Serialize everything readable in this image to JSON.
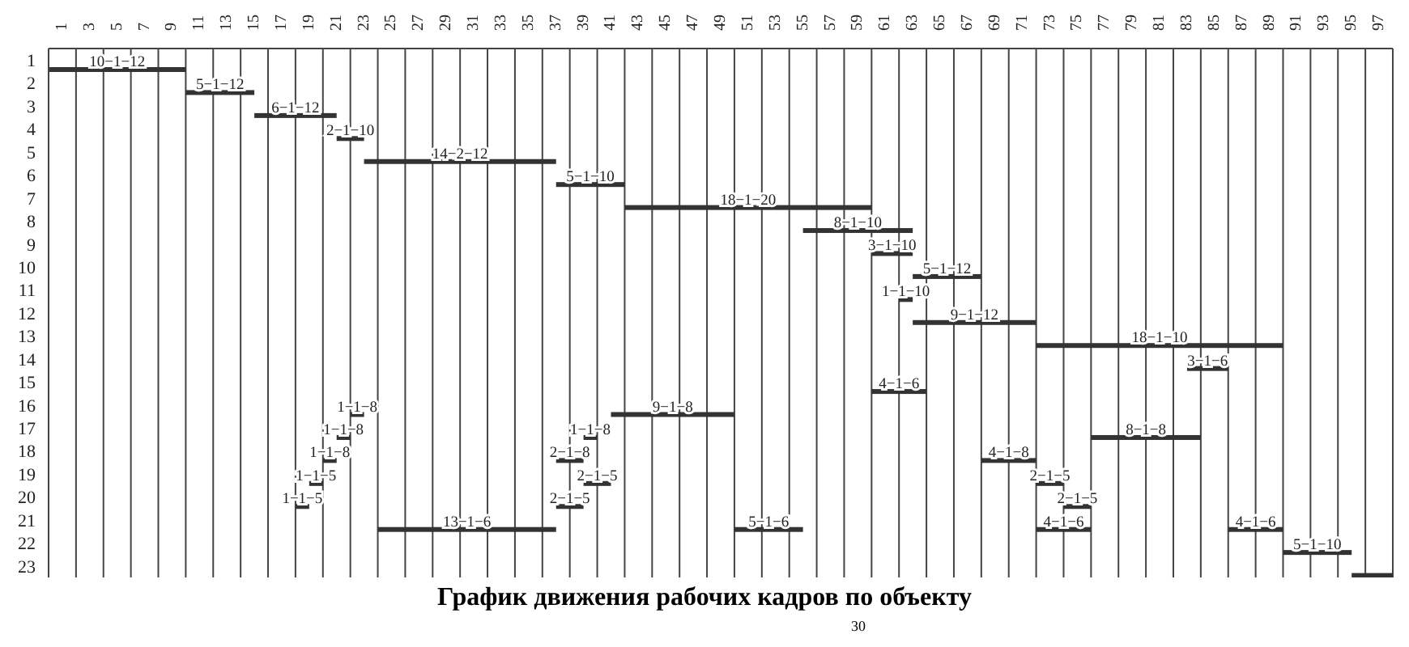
{
  "chart_data": {
    "type": "bar",
    "orientation": "horizontal",
    "title": "График движения рабочих кадров по объекту",
    "categories": [
      "1",
      "2",
      "3",
      "4",
      "5",
      "6",
      "7",
      "8",
      "9",
      "10",
      "11",
      "12",
      "13",
      "14",
      "15",
      "16",
      "17",
      "18",
      "19",
      "20",
      "21",
      "22",
      "23"
    ],
    "series": [
      {
        "color": "#333333",
        "base": [
          0,
          10,
          15,
          21,
          23,
          37,
          42,
          55,
          60,
          63,
          62,
          63,
          72,
          83,
          60,
          22,
          21,
          20,
          19,
          18,
          24,
          90,
          95
        ],
        "values": [
          10,
          5,
          6,
          2,
          14,
          5,
          18,
          8,
          3,
          5,
          1,
          9,
          18,
          3,
          4,
          1,
          1,
          1,
          1,
          1,
          13,
          5,
          3
        ],
        "value_labels": [
          "10−1−12",
          "5−1−12",
          "6−1−12",
          "2−1−10",
          "14−2−12",
          "5−1−10",
          "18−1−20",
          "8−1−10",
          "3−1−10",
          "5−1−12",
          "1−1−10",
          "9−1−12",
          "18−1−10",
          "3−1−6",
          "4−1−6",
          "1−1−8",
          "1−1−8",
          "1−1−8",
          "1−1−5",
          "1−1−5",
          "13−1−6",
          "5−1−10",
          null
        ]
      },
      {
        "color": "#333333",
        "base": [
          null,
          null,
          null,
          null,
          null,
          null,
          null,
          null,
          null,
          null,
          null,
          null,
          null,
          null,
          null,
          41,
          39,
          37,
          39,
          37,
          50,
          null,
          null
        ],
        "values": [
          null,
          null,
          null,
          null,
          null,
          null,
          null,
          null,
          null,
          null,
          null,
          null,
          null,
          null,
          null,
          9,
          1,
          2,
          2,
          2,
          5,
          null,
          null
        ],
        "value_labels": [
          null,
          null,
          null,
          null,
          null,
          null,
          null,
          null,
          null,
          null,
          null,
          null,
          null,
          null,
          null,
          "9−1−8",
          "1−1−8",
          "2−1−8",
          "2−1−5",
          "2−1−5",
          "5−1−6",
          null,
          null
        ]
      },
      {
        "color": "#333333",
        "base": [
          null,
          null,
          null,
          null,
          null,
          null,
          null,
          null,
          null,
          null,
          null,
          null,
          null,
          null,
          null,
          null,
          76,
          68,
          72,
          74,
          72,
          null,
          null
        ],
        "values": [
          null,
          null,
          null,
          null,
          null,
          null,
          null,
          null,
          null,
          null,
          null,
          null,
          null,
          null,
          null,
          null,
          8,
          4,
          2,
          2,
          4,
          null,
          null
        ],
        "value_labels": [
          null,
          null,
          null,
          null,
          null,
          null,
          null,
          null,
          null,
          null,
          null,
          null,
          null,
          null,
          null,
          null,
          "8−1−8",
          "4−1−8",
          "2−1−5",
          "2−1−5",
          "4−1−6",
          null,
          null
        ]
      },
      {
        "color": "#333333",
        "base": [
          null,
          null,
          null,
          null,
          null,
          null,
          null,
          null,
          null,
          null,
          null,
          null,
          null,
          null,
          null,
          null,
          null,
          null,
          null,
          null,
          86,
          null,
          null
        ],
        "values": [
          null,
          null,
          null,
          null,
          null,
          null,
          null,
          null,
          null,
          null,
          null,
          null,
          null,
          null,
          null,
          null,
          null,
          null,
          null,
          null,
          4,
          null,
          null
        ],
        "value_labels": [
          null,
          null,
          null,
          null,
          null,
          null,
          null,
          null,
          null,
          null,
          null,
          null,
          null,
          null,
          null,
          null,
          null,
          null,
          null,
          null,
          "4−1−6",
          null,
          null
        ]
      }
    ],
    "xlim": [
      0,
      98
    ],
    "xticks": [
      {
        "value": 0,
        "label": null
      },
      1,
      {
        "value": 2,
        "label": null
      },
      3,
      {
        "value": 4,
        "label": null
      },
      5,
      {
        "value": 6,
        "label": null
      },
      7,
      {
        "value": 8,
        "label": null
      },
      9,
      {
        "value": 10,
        "label": null
      },
      11,
      {
        "value": 12,
        "label": null
      },
      13,
      {
        "value": 14,
        "label": null
      },
      15,
      {
        "value": 16,
        "label": null
      },
      17,
      {
        "value": 18,
        "label": null
      },
      19,
      {
        "value": 20,
        "label": null
      },
      21,
      {
        "value": 22,
        "label": null
      },
      23,
      {
        "value": 24,
        "label": null
      },
      25,
      {
        "value": 26,
        "label": null
      },
      27,
      {
        "value": 28,
        "label": null
      },
      29,
      {
        "value": 30,
        "label": null
      },
      31,
      {
        "value": 32,
        "label": null
      },
      33,
      {
        "value": 34,
        "label": null
      },
      35,
      {
        "value": 36,
        "label": null
      },
      37,
      {
        "value": 38,
        "label": null
      },
      39,
      {
        "value": 40,
        "label": null
      },
      41,
      {
        "value": 42,
        "label": null
      },
      43,
      {
        "value": 44,
        "label": null
      },
      45,
      {
        "value": 46,
        "label": null
      },
      47,
      {
        "value": 48,
        "label": null
      },
      49,
      {
        "value": 50,
        "label": null
      },
      51,
      {
        "value": 52,
        "label": null
      },
      53,
      {
        "value": 54,
        "label": null
      },
      55,
      {
        "value": 56,
        "label": null
      },
      57,
      {
        "value": 58,
        "label": null
      },
      59,
      {
        "value": 60,
        "label": null
      },
      61,
      {
        "value": 62,
        "label": null
      },
      63,
      {
        "value": 64,
        "label": null
      },
      65,
      {
        "value": 66,
        "label": null
      },
      67,
      {
        "value": 68,
        "label": null
      },
      69,
      {
        "value": 70,
        "label": null
      },
      71,
      {
        "value": 72,
        "label": null
      },
      73,
      {
        "value": 74,
        "label": null
      },
      75,
      {
        "value": 76,
        "label": null
      },
      77,
      {
        "value": 78,
        "label": null
      },
      79,
      {
        "value": 80,
        "label": null
      },
      81,
      {
        "value": 82,
        "label": null
      },
      83,
      {
        "value": 84,
        "label": null
      },
      85,
      {
        "value": 86,
        "label": null
      },
      87,
      {
        "value": 88,
        "label": null
      },
      89,
      {
        "value": 90,
        "label": null
      },
      91,
      {
        "value": 92,
        "label": null
      },
      93,
      {
        "value": 94,
        "label": null
      },
      95,
      {
        "value": 96,
        "label": null
      },
      97,
      {
        "value": 98,
        "label": null
      }
    ],
    "grid": "x",
    "annotations": [
      "30"
    ]
  }
}
